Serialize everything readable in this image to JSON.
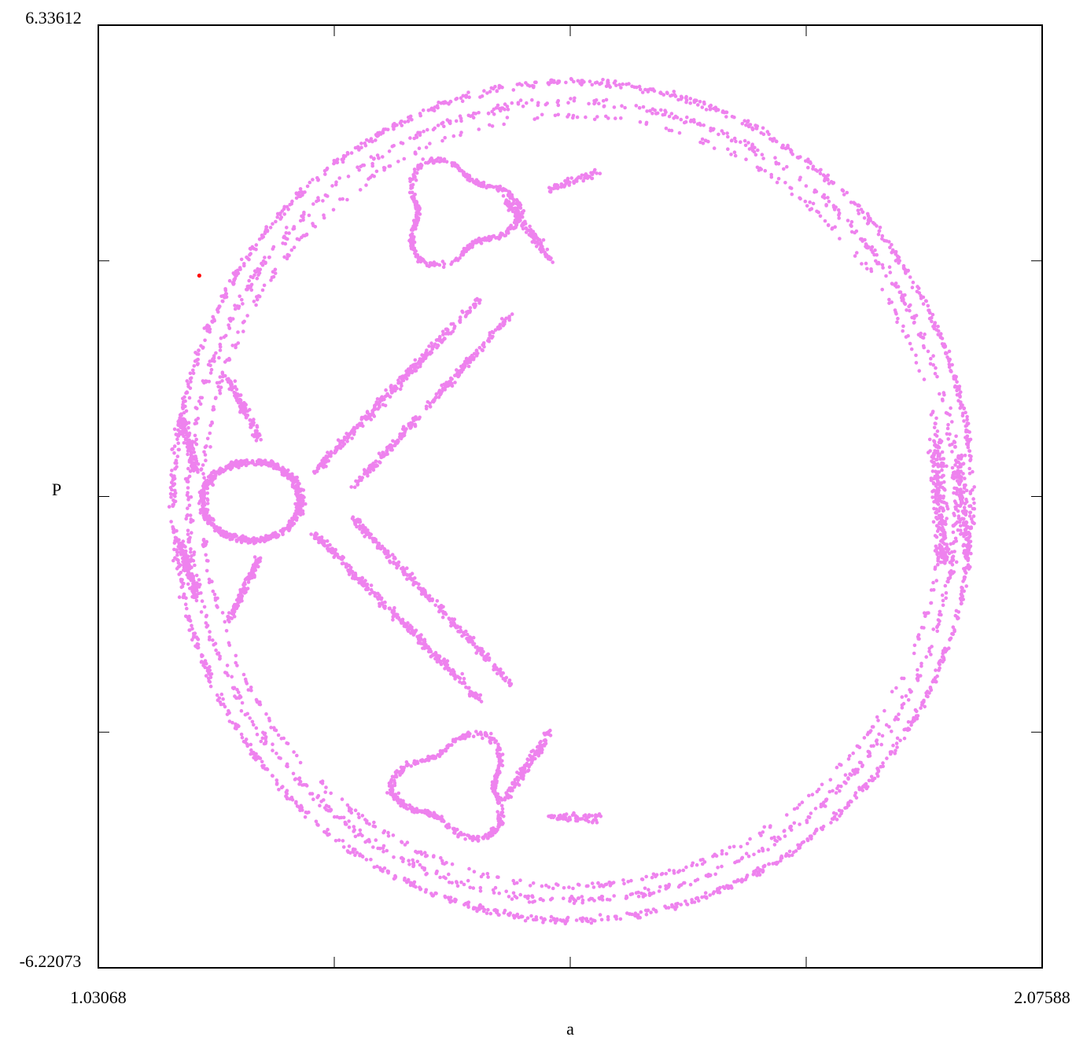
{
  "chart_data": {
    "type": "scatter",
    "title": "",
    "xlabel": "a",
    "ylabel": "P",
    "xlim": [
      1.03068,
      2.07588
    ],
    "ylim": [
      -6.22073,
      6.33612
    ],
    "x_tick_labels": [
      "1.03068",
      "2.07588"
    ],
    "y_tick_labels": [
      "6.33612",
      "-6.22073"
    ],
    "grid": false,
    "legend": "none",
    "series": [
      {
        "color": "#ee82ee",
        "description_values": "poincare section point cloud",
        "structure": {
          "outer_ring": {
            "center_a": 1.55,
            "center_P": 0.05,
            "radius_a_min": 1.1,
            "radius_a_max": 1.91,
            "P_half_extent": 5.55
          },
          "inner_ring": {
            "a_min": 1.145,
            "a_max": 1.88,
            "P_half_extent": 5.05
          },
          "left_loop": {
            "center_a": 1.17,
            "center_P": 0.0
          },
          "upper_loop": {
            "center_a": 1.44,
            "center_P": 3.9
          },
          "lower_loop": {
            "center_a": 1.44,
            "center_P": -3.9
          }
        }
      },
      {
        "color": "#ff0000",
        "x": [
          1.1425
        ],
        "y": [
          3.0
        ]
      }
    ]
  }
}
